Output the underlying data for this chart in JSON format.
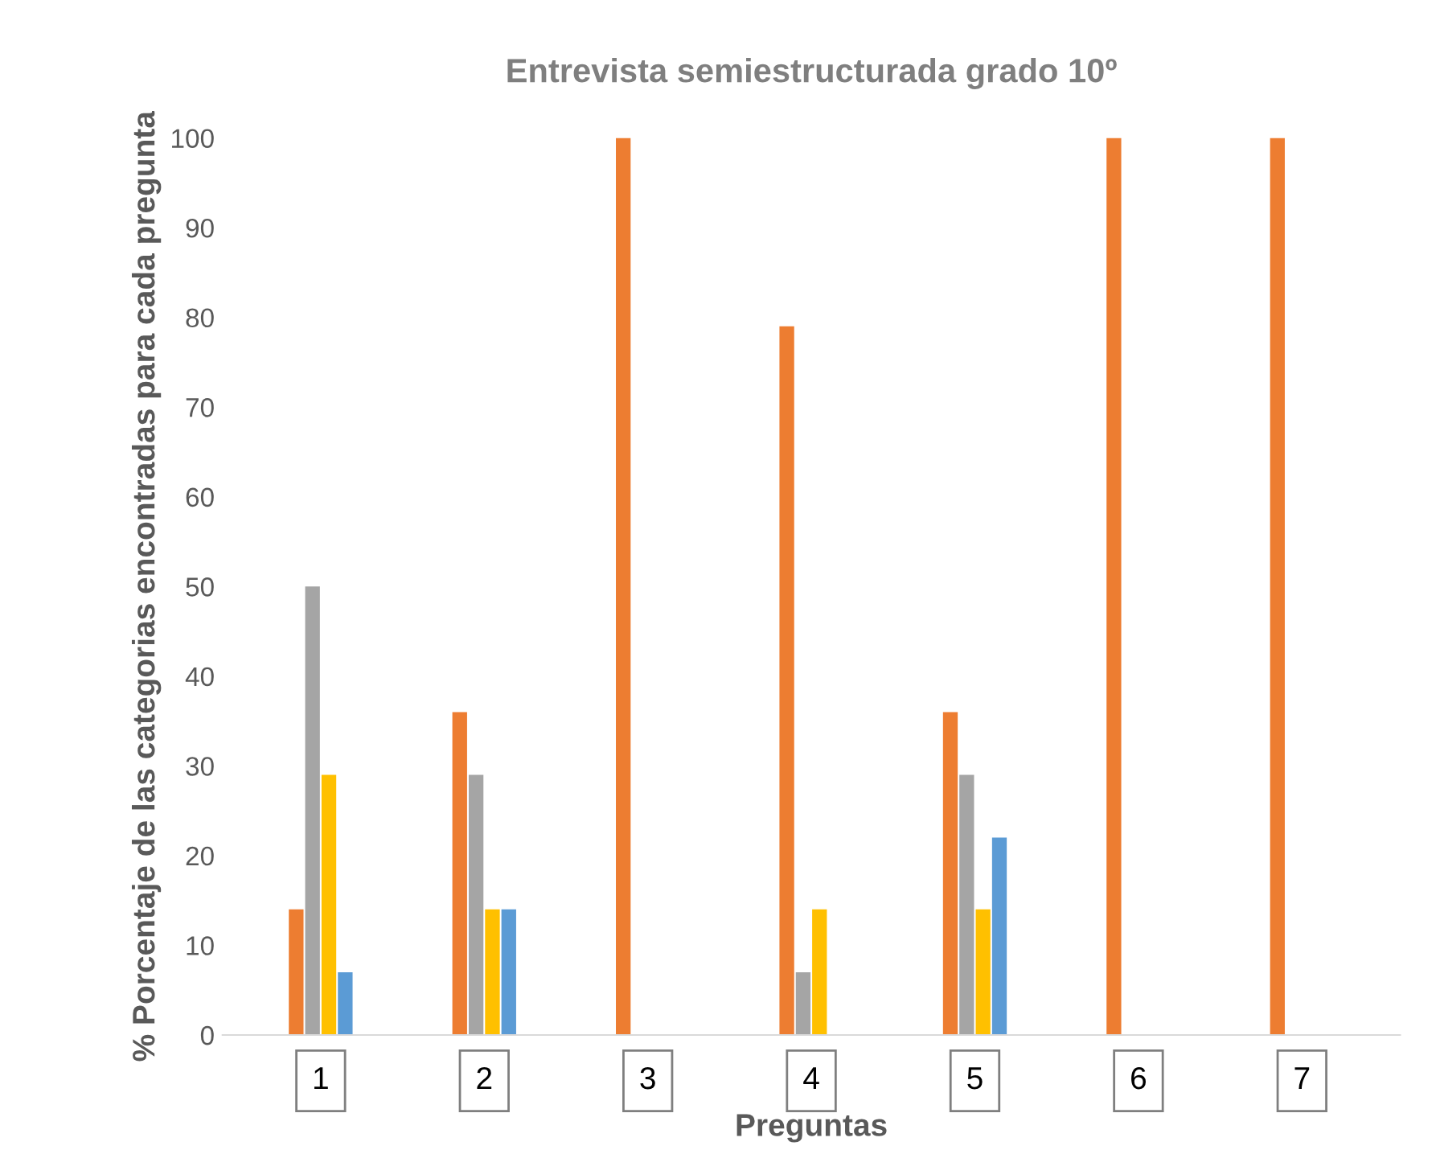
{
  "chart_data": {
    "type": "bar",
    "title": "Entrevista semiestructurada grado 10º",
    "xlabel": "Preguntas",
    "ylabel": "% Porcentaje de las categorias encontradas para cada pregunta",
    "categories": [
      "1",
      "2",
      "3",
      "4",
      "5",
      "6",
      "7"
    ],
    "series": [
      {
        "color": "#ed7d31",
        "values": [
          14,
          36,
          100,
          79,
          36,
          100,
          100
        ]
      },
      {
        "color": "#a5a5a5",
        "values": [
          50,
          29,
          null,
          7,
          29,
          null,
          null
        ]
      },
      {
        "color": "#ffc000",
        "values": [
          29,
          14,
          null,
          14,
          14,
          null,
          null
        ]
      },
      {
        "color": "#5b9bd5",
        "values": [
          7,
          14,
          null,
          null,
          22,
          null,
          null
        ]
      }
    ],
    "ylim": [
      0,
      100
    ],
    "yticks": [
      0,
      10,
      20,
      30,
      40,
      50,
      60,
      70,
      80,
      90,
      100
    ],
    "grid": false
  }
}
